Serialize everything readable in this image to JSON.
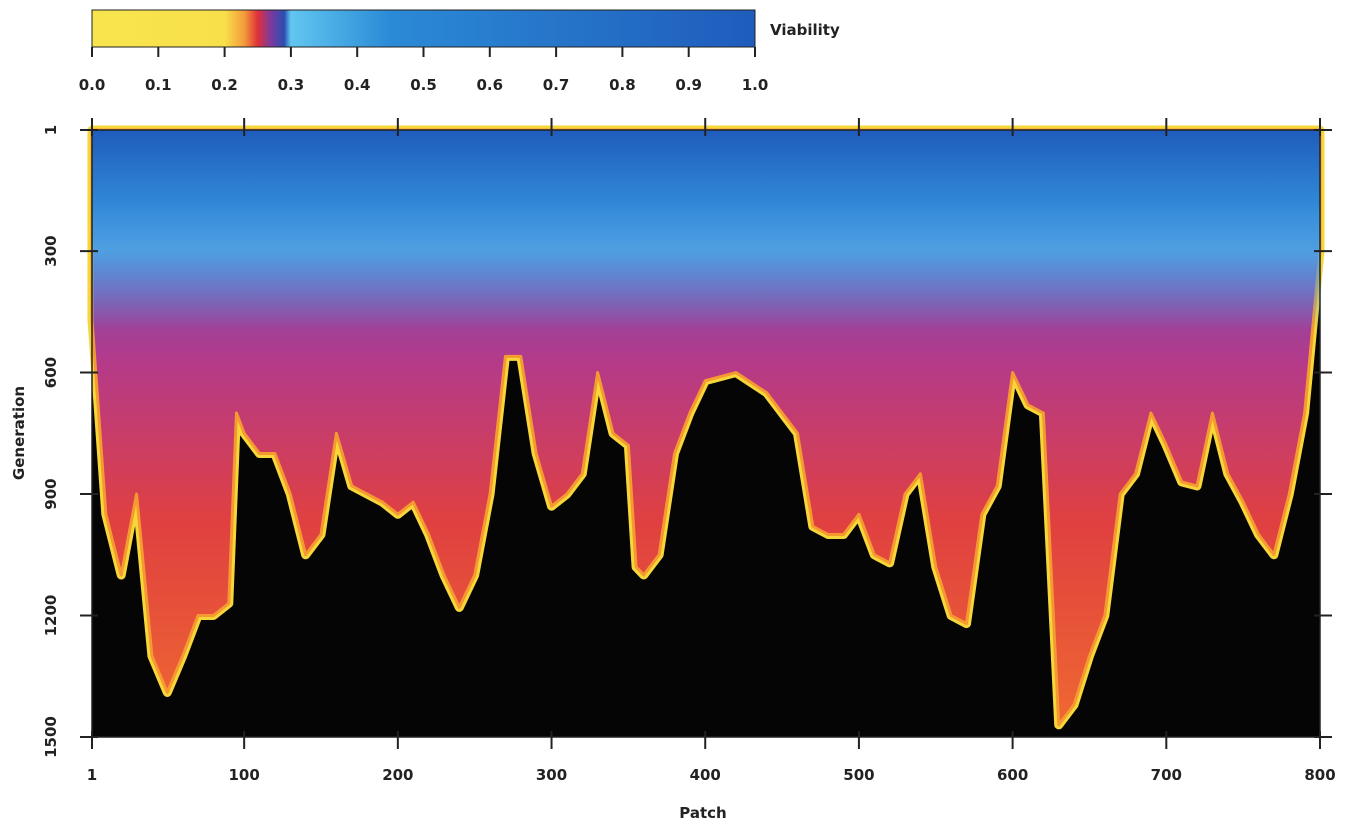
{
  "chart_data": {
    "type": "heatmap",
    "xlabel": "Patch",
    "ylabel": "Generation",
    "xlim": [
      1,
      800
    ],
    "xticks": [
      1,
      100,
      200,
      300,
      400,
      500,
      600,
      700,
      800
    ],
    "ylim": [
      1,
      1500
    ],
    "yticks": [
      1,
      300,
      600,
      900,
      1200,
      1500
    ],
    "y_inverted": true,
    "x": [
      1,
      10,
      20,
      30,
      40,
      50,
      60,
      70,
      80,
      90,
      95,
      100,
      110,
      120,
      130,
      140,
      150,
      160,
      170,
      180,
      190,
      200,
      210,
      220,
      230,
      240,
      250,
      260,
      270,
      280,
      290,
      300,
      310,
      320,
      330,
      340,
      350,
      355,
      360,
      370,
      380,
      390,
      400,
      420,
      440,
      460,
      470,
      480,
      490,
      500,
      510,
      520,
      530,
      540,
      550,
      560,
      570,
      580,
      590,
      600,
      610,
      620,
      630,
      640,
      650,
      660,
      670,
      680,
      690,
      700,
      710,
      720,
      730,
      740,
      750,
      760,
      770,
      780,
      790,
      800
    ],
    "values": [
      470,
      950,
      1100,
      900,
      1300,
      1390,
      1300,
      1200,
      1200,
      1170,
      700,
      750,
      800,
      800,
      900,
      1050,
      1000,
      750,
      880,
      900,
      920,
      950,
      920,
      1000,
      1100,
      1180,
      1100,
      900,
      560,
      560,
      800,
      930,
      900,
      850,
      600,
      750,
      780,
      1080,
      1100,
      1050,
      800,
      700,
      620,
      600,
      650,
      750,
      980,
      1000,
      1000,
      950,
      1050,
      1070,
      900,
      850,
      1080,
      1200,
      1220,
      950,
      880,
      600,
      680,
      700,
      1470,
      1420,
      1300,
      1200,
      900,
      850,
      700,
      780,
      870,
      880,
      700,
      850,
      920,
      1000,
      1050,
      900,
      700,
      300
    ],
    "colorbar": {
      "label": "Viability",
      "lim": [
        0,
        1
      ],
      "ticks": [
        {
          "value": 0,
          "label": "0.0"
        },
        {
          "value": 0.1,
          "label": "0.1"
        },
        {
          "value": 0.2,
          "label": "0.2"
        },
        {
          "value": 0.3,
          "label": "0.3"
        },
        {
          "value": 0.4,
          "label": "0.4"
        },
        {
          "value": 0.5,
          "label": "0.5"
        },
        {
          "value": 0.6,
          "label": "0.6"
        },
        {
          "value": 0.7,
          "label": "0.7"
        },
        {
          "value": 0.8,
          "label": "0.8"
        },
        {
          "value": 0.9,
          "label": "0.9"
        },
        {
          "value": 1,
          "label": "1.0"
        }
      ],
      "colors": [
        {
          "value": 0,
          "color": "#f8e54e"
        },
        {
          "value": 0.2,
          "color": "#f8e04a"
        },
        {
          "value": 0.23,
          "color": "#f39a3a"
        },
        {
          "value": 0.25,
          "color": "#e0303a"
        },
        {
          "value": 0.27,
          "color": "#7a3aa0"
        },
        {
          "value": 0.29,
          "color": "#2a4fb0"
        },
        {
          "value": 0.3,
          "color": "#62c6f0"
        },
        {
          "value": 0.45,
          "color": "#2b8ad6"
        },
        {
          "value": 1,
          "color": "#1f5cbc"
        }
      ]
    }
  }
}
